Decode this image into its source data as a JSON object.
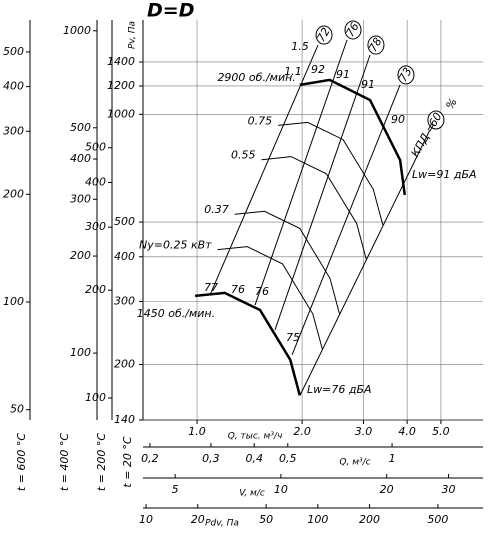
{
  "chart_data": {
    "type": "fan-performance",
    "title": "D=D",
    "y_label": "Pv, Па",
    "y_condition": "t = 20 °C",
    "x_label": "Q, тыс. м³/ч",
    "log_x": true,
    "log_y": true,
    "grid": true,
    "xlim": [
      0.7,
      6.6
    ],
    "ylim": [
      140,
      1834
    ],
    "xticks": [
      {
        "value": 1,
        "label": "1.0"
      },
      {
        "value": 2,
        "label": "2.0"
      },
      {
        "value": 3,
        "label": "3.0"
      },
      {
        "value": 4,
        "label": "4.0"
      },
      {
        "value": 5,
        "label": "5.0"
      }
    ],
    "yticks": [
      140,
      200,
      300,
      400,
      500,
      1000,
      1200,
      1400
    ],
    "speed_curves": [
      {
        "name": "2900 об./мин.",
        "color": "#000000",
        "line_width": 2.5,
        "x": [
          1.97,
          2.4,
          3.13,
          3.82,
          3.94
        ],
        "values": [
          1208,
          1248,
          1096,
          745,
          595
        ]
      },
      {
        "name": "1450 об./мин.",
        "color": "#000000",
        "line_width": 2.5,
        "x": [
          0.987,
          1.2,
          1.515,
          1.85,
          1.97
        ],
        "values": [
          311,
          317,
          284,
          206,
          164
        ]
      },
      {
        "name": "Ny=0.25 кВт",
        "color": "#000000",
        "line_width": 1,
        "x": [
          1.145,
          1.392,
          1.757,
          2.146,
          2.285
        ],
        "values": [
          419,
          427,
          382,
          277,
          221
        ]
      },
      {
        "name": "0.37",
        "color": "#000000",
        "line_width": 1,
        "x": [
          1.283,
          1.56,
          1.97,
          2.405,
          2.561
        ],
        "values": [
          526,
          536,
          480,
          348,
          277
        ]
      },
      {
        "name": "0.55",
        "color": "#000000",
        "line_width": 1,
        "x": [
          1.53,
          1.86,
          2.348,
          2.868,
          3.054
        ],
        "values": [
          747,
          762,
          682,
          495,
          394
        ]
      },
      {
        "name": "0.75",
        "color": "#000000",
        "line_width": 1,
        "x": [
          1.708,
          2.076,
          2.621,
          3.2,
          3.408
        ],
        "values": [
          931,
          949,
          850,
          617,
          491
        ]
      }
    ],
    "efficiency_lines": [
      {
        "name": "72",
        "x": [
          1.089,
          2.222
        ],
        "values": [
          313,
          1561
        ]
      },
      {
        "name": "76",
        "x": [
          1.466,
          2.69
        ],
        "values": [
          293,
          1613
        ]
      },
      {
        "name": "78",
        "x": [
          1.673,
          3.13
        ],
        "values": [
          250,
          1464
        ]
      },
      {
        "name": "73",
        "x": [
          1.872,
          3.816
        ],
        "values": [
          213,
          1208
        ]
      },
      {
        "name": "60",
        "x": [
          1.973,
          4.65
        ],
        "values": [
          164,
          904
        ]
      }
    ],
    "annotations": [
      "1.5",
      "1.1",
      "92",
      "91",
      "91",
      "90",
      "77",
      "76",
      "76",
      "75",
      "Lw=91 дБА",
      "Lw=76 дБА",
      "КПД =",
      "%"
    ],
    "aux_axes": [
      {
        "label": "t = 600 °C",
        "ylim": [
          46.8,
          614
        ],
        "yticks": [
          50,
          100,
          200,
          300,
          400,
          500
        ]
      },
      {
        "label": "t = 400 °C",
        "ylim": [
          62,
          1080
        ],
        "yticks": [
          100,
          200,
          300,
          400,
          500,
          1000
        ]
      },
      {
        "label": "t = 200 °C",
        "ylim": [
          86.8,
          1137
        ],
        "yticks": [
          100,
          200,
          300,
          400,
          500
        ]
      }
    ],
    "bottom_scales": [
      {
        "label": "Q, м³/с",
        "xlim": [
          0.191,
          1.83
        ],
        "xticks": [
          {
            "value": 0.2,
            "label": "0,2"
          },
          {
            "value": 0.3,
            "label": "0,3"
          },
          {
            "value": 0.4,
            "label": "0,4"
          },
          {
            "value": 0.5,
            "label": "0,5"
          },
          1
        ]
      },
      {
        "label": "V, м/с",
        "xlim": [
          4.05,
          37.6
        ],
        "xticks": [
          5,
          10,
          20,
          30
        ]
      },
      {
        "label": "Pdv, Па",
        "xlim": [
          9.6,
          915
        ],
        "xticks": [
          10,
          20,
          50,
          100,
          200,
          500
        ]
      }
    ]
  }
}
